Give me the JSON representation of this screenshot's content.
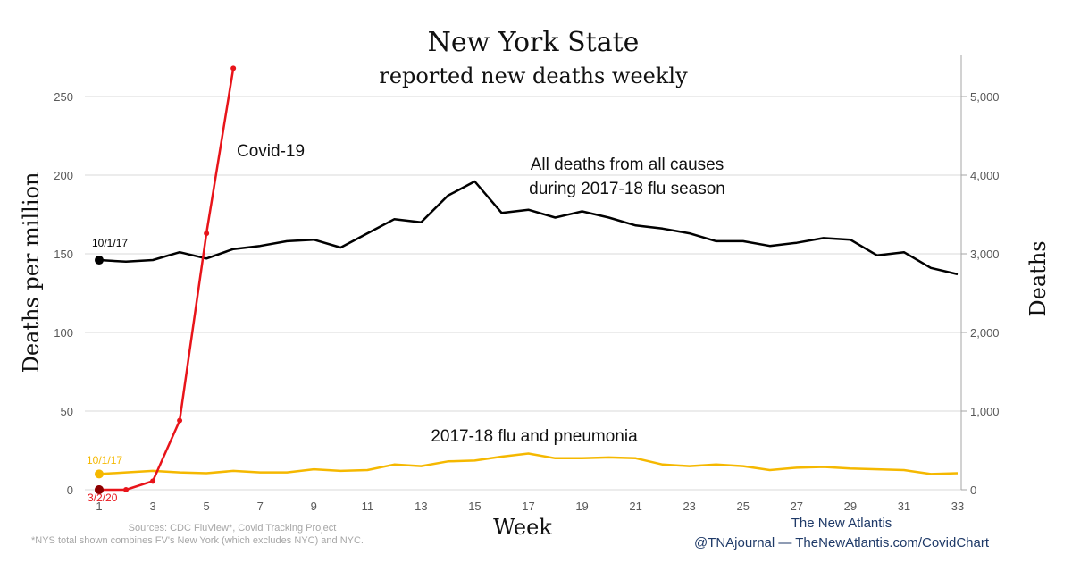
{
  "header": {
    "title": "New York State",
    "subtitle": "reported new deaths weekly"
  },
  "annotations": {
    "covid": "Covid-19",
    "all_deaths_line1": "All deaths from all causes",
    "all_deaths_line2": "during 2017-18 flu season",
    "flu": "2017-18 flu and pneumonia",
    "all_deaths_start": "10/1/17",
    "flu_start": "10/1/17",
    "covid_start": "3/2/20"
  },
  "footer": {
    "sources": "Sources: CDC FluView*, Covid Tracking Project",
    "note": "*NYS total shown combines FV's New York (which excludes NYC) and NYC.",
    "brand_line1": "The New Atlantis",
    "brand_line2": "@TNAjournal — TheNewAtlantis.com/CovidChart"
  },
  "colors": {
    "all_deaths": "#000000",
    "covid": "#e8141a",
    "flu": "#f5b800",
    "grid": "#d9d9d9"
  },
  "chart_data": {
    "type": "line",
    "xlabel": "Week",
    "ylabel": "Deaths per million",
    "y2label": "Deaths",
    "xlim": [
      1,
      33
    ],
    "ylim": [
      0,
      250
    ],
    "y2lim": [
      0,
      5000
    ],
    "xticks": [
      1,
      3,
      5,
      7,
      9,
      11,
      13,
      15,
      17,
      19,
      21,
      23,
      25,
      27,
      29,
      31,
      33
    ],
    "yticks": [
      0,
      50,
      100,
      150,
      200,
      250
    ],
    "y2ticks": [
      "0",
      "1,000",
      "2,000",
      "3,000",
      "4,000",
      "5,000"
    ],
    "y2tick_values": [
      0,
      1000,
      2000,
      3000,
      4000,
      5000
    ],
    "grid": true,
    "series": [
      {
        "key": "all_deaths",
        "x": [
          1,
          2,
          3,
          4,
          5,
          6,
          7,
          8,
          9,
          10,
          11,
          12,
          13,
          14,
          15,
          16,
          17,
          18,
          19,
          20,
          21,
          22,
          23,
          24,
          25,
          26,
          27,
          28,
          29,
          30,
          31,
          32,
          33
        ],
        "values": [
          146,
          145,
          146,
          151,
          147,
          153,
          155,
          158,
          159,
          154,
          163,
          172,
          170,
          187,
          196,
          176,
          178,
          173,
          177,
          173,
          168,
          166,
          163,
          158,
          158,
          155,
          157,
          160,
          159,
          149,
          151,
          141,
          137
        ]
      },
      {
        "key": "flu",
        "x": [
          1,
          2,
          3,
          4,
          5,
          6,
          7,
          8,
          9,
          10,
          11,
          12,
          13,
          14,
          15,
          16,
          17,
          18,
          19,
          20,
          21,
          22,
          23,
          24,
          25,
          26,
          27,
          28,
          29,
          30,
          31,
          32,
          33
        ],
        "values": [
          10,
          11,
          12,
          11,
          10.5,
          12,
          11,
          11,
          13,
          12,
          12.5,
          16,
          15,
          18,
          18.5,
          21,
          23,
          20,
          20,
          20.5,
          20,
          16,
          15,
          16,
          15,
          12.5,
          14,
          14.5,
          13.5,
          13,
          12.5,
          10,
          10.5
        ]
      },
      {
        "key": "covid",
        "x": [
          1,
          2,
          3,
          4,
          5,
          6
        ],
        "values": [
          0,
          0,
          5.5,
          44,
          163,
          268
        ]
      }
    ]
  }
}
